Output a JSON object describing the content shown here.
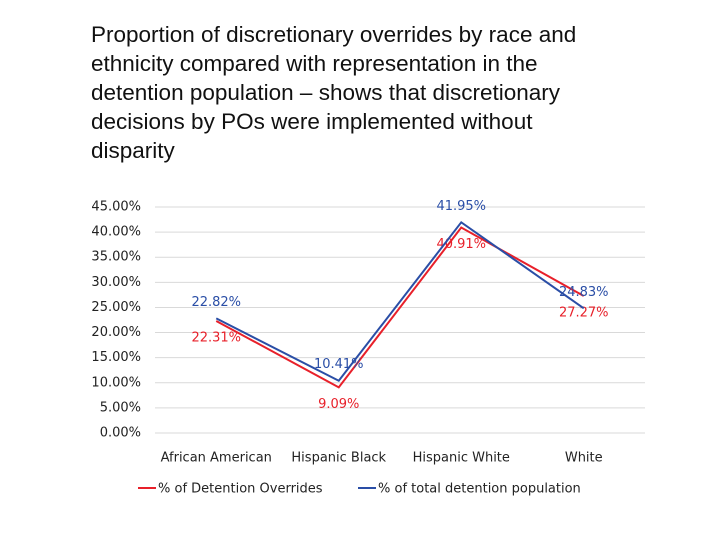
{
  "chart_data": {
    "type": "line",
    "title": "Proportion of discretionary overrides by race and ethnicity compared with representation in the detention population – shows that discretionary decisions by POs were implemented without disparity",
    "categories": [
      "African American",
      "Hispanic Black",
      "Hispanic White",
      "White"
    ],
    "series": [
      {
        "name": "% of Detention Overrides",
        "color": "#e8202a",
        "values": [
          22.31,
          9.09,
          40.91,
          27.27
        ],
        "value_labels": [
          "22.31%",
          "9.09%",
          "40.91%",
          "27.27%"
        ]
      },
      {
        "name": "% of total detention population",
        "color": "#2a4ea6",
        "values": [
          22.82,
          10.41,
          41.95,
          24.83
        ],
        "value_labels": [
          "22.82%",
          "10.41%",
          "41.95%",
          "24.83%"
        ]
      }
    ],
    "ylim": [
      0,
      45
    ],
    "yticks": [
      {
        "value": 0,
        "label": "0.00%"
      },
      {
        "value": 5,
        "label": "5.00%"
      },
      {
        "value": 10,
        "label": "10.00%"
      },
      {
        "value": 15,
        "label": "15.00%"
      },
      {
        "value": 20,
        "label": "20.00%"
      },
      {
        "value": 25,
        "label": "25.00%"
      },
      {
        "value": 30,
        "label": "30.00%"
      },
      {
        "value": 35,
        "label": "35.00%"
      },
      {
        "value": 40,
        "label": "40.00%"
      },
      {
        "value": 45,
        "label": "45.00%"
      }
    ],
    "grid": true,
    "legend": "bottom"
  }
}
